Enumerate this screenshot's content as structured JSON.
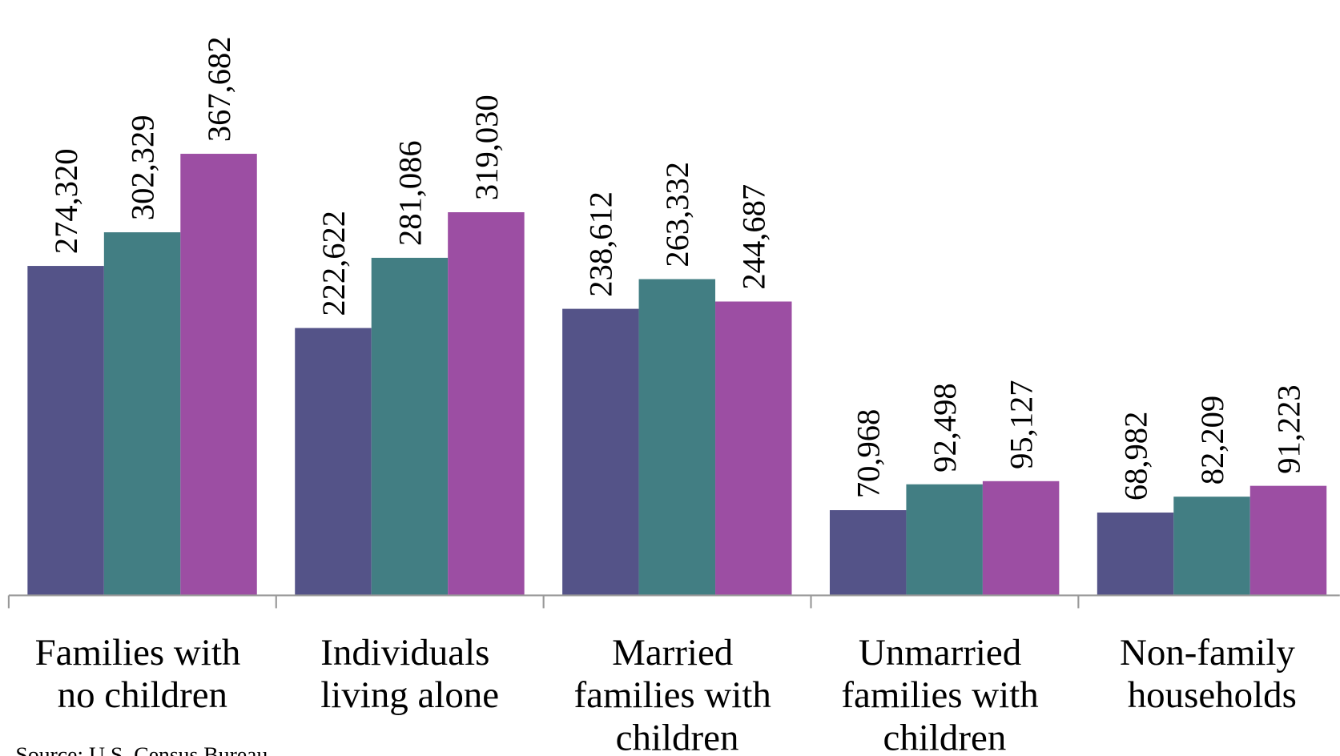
{
  "chart_data": {
    "type": "bar",
    "categories": [
      "Families with no children",
      "Individuals living alone",
      "Married families with children",
      "Unmarried families with children",
      "Non-family households"
    ],
    "series": [
      {
        "color": "#545388",
        "values": [
          274320,
          222622,
          238612,
          70968,
          68982
        ],
        "value_labels": [
          "274,320",
          "222,622",
          "238,612",
          "70,968",
          "68,982"
        ]
      },
      {
        "color": "#427e83",
        "values": [
          302329,
          281086,
          263332,
          92498,
          82209
        ],
        "value_labels": [
          "302,329",
          "281,086",
          "263,332",
          "92,498",
          "82,209"
        ]
      },
      {
        "color": "#9c4ea3",
        "values": [
          367682,
          319030,
          244687,
          95127,
          91223
        ],
        "value_labels": [
          "367,682",
          "319,030",
          "244,687",
          "95,127",
          "91,223"
        ]
      }
    ],
    "ylim": [
      0,
      500000
    ],
    "source": "Source:  U.S. Census Bureau"
  }
}
